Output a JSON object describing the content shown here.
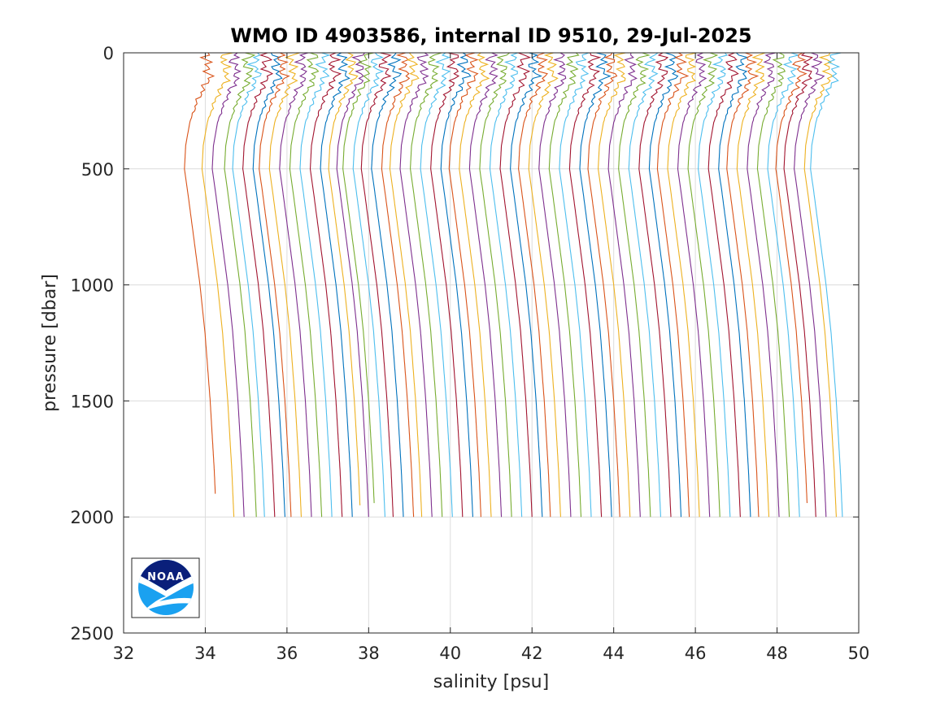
{
  "chart_data": {
    "type": "line",
    "title": "WMO ID 4903586, internal ID 9510, 29-Jul-2025",
    "xlabel": "salinity [psu]",
    "ylabel": "pressure [dbar]",
    "xlim": [
      32,
      50
    ],
    "ylim": [
      0,
      2500
    ],
    "y_reversed": true,
    "x_ticks": [
      "32",
      "34",
      "36",
      "38",
      "40",
      "42",
      "44",
      "46",
      "48",
      "50"
    ],
    "y_ticks": [
      "0",
      "500",
      "1000",
      "1500",
      "2000",
      "2500"
    ],
    "grid": true,
    "legend": "none",
    "colors": [
      "#0072BD",
      "#D95319",
      "#EDB120",
      "#7E2F8E",
      "#77AC30",
      "#4DBEEE",
      "#A2142F"
    ],
    "profile_shape": {
      "pressure": [
        0,
        50,
        100,
        150,
        200,
        300,
        400,
        500,
        600,
        800,
        1000,
        1200,
        1500,
        1800,
        2000
      ],
      "offset_from_bottom_salinity": [
        -0.2,
        -0.25,
        -0.15,
        -0.3,
        -0.45,
        -0.65,
        -0.75,
        -0.78,
        -0.7,
        -0.55,
        -0.4,
        -0.28,
        -0.15,
        -0.05,
        0
      ]
    },
    "series": [
      {
        "color": "#D95319",
        "bottom_salinity": 34.27,
        "max_pressure": 1900
      },
      {
        "color": "#EDB120",
        "bottom_salinity": 34.7,
        "max_pressure": 2000
      },
      {
        "color": "#7E2F8E",
        "bottom_salinity": 34.95,
        "max_pressure": 2000
      },
      {
        "color": "#77AC30",
        "bottom_salinity": 35.25,
        "max_pressure": 2000
      },
      {
        "color": "#4DBEEE",
        "bottom_salinity": 35.45,
        "max_pressure": 2000
      },
      {
        "color": "#A2142F",
        "bottom_salinity": 35.7,
        "max_pressure": 2000
      },
      {
        "color": "#0072BD",
        "bottom_salinity": 35.95,
        "max_pressure": 2000
      },
      {
        "color": "#D95319",
        "bottom_salinity": 36.1,
        "max_pressure": 2000
      },
      {
        "color": "#EDB120",
        "bottom_salinity": 36.35,
        "max_pressure": 2000
      },
      {
        "color": "#7E2F8E",
        "bottom_salinity": 36.6,
        "max_pressure": 2000
      },
      {
        "color": "#77AC30",
        "bottom_salinity": 36.85,
        "max_pressure": 2000
      },
      {
        "color": "#4DBEEE",
        "bottom_salinity": 37.1,
        "max_pressure": 2000
      },
      {
        "color": "#A2142F",
        "bottom_salinity": 37.35,
        "max_pressure": 2000
      },
      {
        "color": "#0072BD",
        "bottom_salinity": 37.6,
        "max_pressure": 2000
      },
      {
        "color": "#EDB120",
        "bottom_salinity": 37.8,
        "max_pressure": 1950
      },
      {
        "color": "#7E2F8E",
        "bottom_salinity": 38.0,
        "max_pressure": 2000
      },
      {
        "color": "#77AC30",
        "bottom_salinity": 38.15,
        "max_pressure": 1940
      },
      {
        "color": "#4DBEEE",
        "bottom_salinity": 38.4,
        "max_pressure": 2000
      },
      {
        "color": "#A2142F",
        "bottom_salinity": 38.6,
        "max_pressure": 2000
      },
      {
        "color": "#0072BD",
        "bottom_salinity": 38.85,
        "max_pressure": 2000
      },
      {
        "color": "#D95319",
        "bottom_salinity": 39.1,
        "max_pressure": 2000
      },
      {
        "color": "#EDB120",
        "bottom_salinity": 39.3,
        "max_pressure": 2000
      },
      {
        "color": "#7E2F8E",
        "bottom_salinity": 39.55,
        "max_pressure": 2000
      },
      {
        "color": "#77AC30",
        "bottom_salinity": 39.8,
        "max_pressure": 2000
      },
      {
        "color": "#4DBEEE",
        "bottom_salinity": 40.05,
        "max_pressure": 2000
      },
      {
        "color": "#A2142F",
        "bottom_salinity": 40.3,
        "max_pressure": 2000
      },
      {
        "color": "#0072BD",
        "bottom_salinity": 40.55,
        "max_pressure": 2000
      },
      {
        "color": "#D95319",
        "bottom_salinity": 40.75,
        "max_pressure": 2000
      },
      {
        "color": "#EDB120",
        "bottom_salinity": 41.0,
        "max_pressure": 2000
      },
      {
        "color": "#7E2F8E",
        "bottom_salinity": 41.25,
        "max_pressure": 2000
      },
      {
        "color": "#77AC30",
        "bottom_salinity": 41.5,
        "max_pressure": 2000
      },
      {
        "color": "#4DBEEE",
        "bottom_salinity": 41.75,
        "max_pressure": 2000
      },
      {
        "color": "#A2142F",
        "bottom_salinity": 42.0,
        "max_pressure": 2000
      },
      {
        "color": "#0072BD",
        "bottom_salinity": 42.25,
        "max_pressure": 2000
      },
      {
        "color": "#D95319",
        "bottom_salinity": 42.45,
        "max_pressure": 2000
      },
      {
        "color": "#EDB120",
        "bottom_salinity": 42.7,
        "max_pressure": 2000
      },
      {
        "color": "#7E2F8E",
        "bottom_salinity": 42.95,
        "max_pressure": 2000
      },
      {
        "color": "#77AC30",
        "bottom_salinity": 43.2,
        "max_pressure": 2000
      },
      {
        "color": "#4DBEEE",
        "bottom_salinity": 43.45,
        "max_pressure": 2000
      },
      {
        "color": "#A2142F",
        "bottom_salinity": 43.7,
        "max_pressure": 2000
      },
      {
        "color": "#0072BD",
        "bottom_salinity": 43.95,
        "max_pressure": 2000
      },
      {
        "color": "#D95319",
        "bottom_salinity": 44.15,
        "max_pressure": 2000
      },
      {
        "color": "#EDB120",
        "bottom_salinity": 44.4,
        "max_pressure": 2000
      },
      {
        "color": "#7E2F8E",
        "bottom_salinity": 44.65,
        "max_pressure": 2000
      },
      {
        "color": "#77AC30",
        "bottom_salinity": 44.9,
        "max_pressure": 2000
      },
      {
        "color": "#4DBEEE",
        "bottom_salinity": 45.15,
        "max_pressure": 2000
      },
      {
        "color": "#A2142F",
        "bottom_salinity": 45.4,
        "max_pressure": 2000
      },
      {
        "color": "#0072BD",
        "bottom_salinity": 45.65,
        "max_pressure": 2000
      },
      {
        "color": "#D95319",
        "bottom_salinity": 45.85,
        "max_pressure": 2000
      },
      {
        "color": "#EDB120",
        "bottom_salinity": 46.1,
        "max_pressure": 2000
      },
      {
        "color": "#7E2F8E",
        "bottom_salinity": 46.35,
        "max_pressure": 2000
      },
      {
        "color": "#77AC30",
        "bottom_salinity": 46.6,
        "max_pressure": 2000
      },
      {
        "color": "#4DBEEE",
        "bottom_salinity": 46.85,
        "max_pressure": 2000
      },
      {
        "color": "#A2142F",
        "bottom_salinity": 47.1,
        "max_pressure": 2000
      },
      {
        "color": "#0072BD",
        "bottom_salinity": 47.35,
        "max_pressure": 2000
      },
      {
        "color": "#D95319",
        "bottom_salinity": 47.55,
        "max_pressure": 2000
      },
      {
        "color": "#EDB120",
        "bottom_salinity": 47.8,
        "max_pressure": 2000
      },
      {
        "color": "#7E2F8E",
        "bottom_salinity": 48.05,
        "max_pressure": 2000
      },
      {
        "color": "#77AC30",
        "bottom_salinity": 48.3,
        "max_pressure": 2000
      },
      {
        "color": "#4DBEEE",
        "bottom_salinity": 48.55,
        "max_pressure": 2000
      },
      {
        "color": "#D95319",
        "bottom_salinity": 48.75,
        "max_pressure": 1940
      },
      {
        "color": "#A2142F",
        "bottom_salinity": 48.95,
        "max_pressure": 2000
      },
      {
        "color": "#7E2F8E",
        "bottom_salinity": 49.2,
        "max_pressure": 2000
      },
      {
        "color": "#EDB120",
        "bottom_salinity": 49.45,
        "max_pressure": 2000
      },
      {
        "color": "#4DBEEE",
        "bottom_salinity": 49.6,
        "max_pressure": 2000
      }
    ]
  },
  "logo": {
    "text": "NOAA",
    "dark_color": "#0a1f7a",
    "light_color": "#1aa1f0"
  }
}
